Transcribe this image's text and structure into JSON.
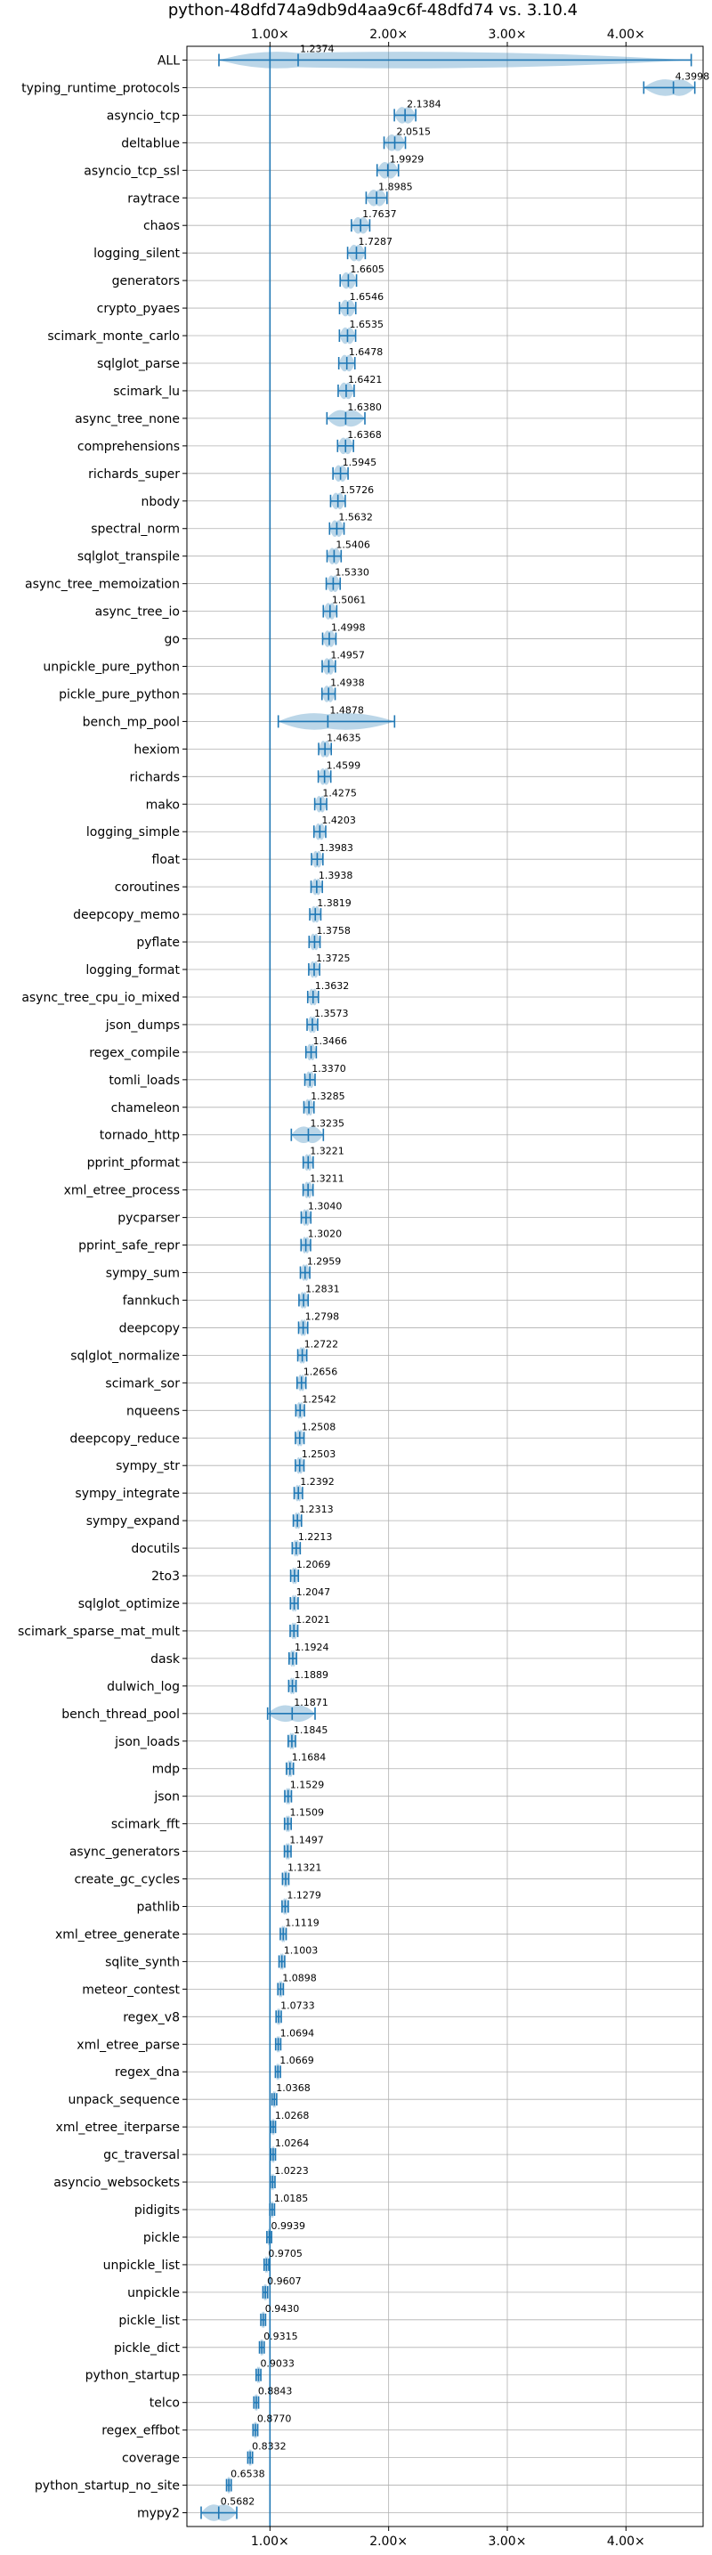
{
  "chart_data": {
    "type": "violin",
    "title": "python-48dfd74a9db9d4aa9c6f-48dfd74 vs. 3.10.4",
    "x_axis": {
      "position": "top and bottom",
      "range": [
        0.3,
        4.65
      ],
      "ticks": [
        1.0,
        2.0,
        3.0,
        4.0
      ],
      "tick_labels": [
        "1.00×",
        "2.00×",
        "3.00×",
        "4.00×"
      ]
    },
    "reference_line": 1.0,
    "grid": true,
    "categories": [
      "ALL",
      "typing_runtime_protocols",
      "asyncio_tcp",
      "deltablue",
      "asyncio_tcp_ssl",
      "raytrace",
      "chaos",
      "logging_silent",
      "generators",
      "crypto_pyaes",
      "scimark_monte_carlo",
      "sqlglot_parse",
      "scimark_lu",
      "async_tree_none",
      "comprehensions",
      "richards_super",
      "nbody",
      "spectral_norm",
      "sqlglot_transpile",
      "async_tree_memoization",
      "async_tree_io",
      "go",
      "unpickle_pure_python",
      "pickle_pure_python",
      "bench_mp_pool",
      "hexiom",
      "richards",
      "mako",
      "logging_simple",
      "float",
      "coroutines",
      "deepcopy_memo",
      "pyflate",
      "logging_format",
      "async_tree_cpu_io_mixed",
      "json_dumps",
      "regex_compile",
      "tomli_loads",
      "chameleon",
      "tornado_http",
      "pprint_pformat",
      "xml_etree_process",
      "pycparser",
      "pprint_safe_repr",
      "sympy_sum",
      "fannkuch",
      "deepcopy",
      "sqlglot_normalize",
      "scimark_sor",
      "nqueens",
      "deepcopy_reduce",
      "sympy_str",
      "sympy_integrate",
      "sympy_expand",
      "docutils",
      "2to3",
      "sqlglot_optimize",
      "scimark_sparse_mat_mult",
      "dask",
      "dulwich_log",
      "bench_thread_pool",
      "json_loads",
      "mdp",
      "json",
      "scimark_fft",
      "async_generators",
      "create_gc_cycles",
      "pathlib",
      "xml_etree_generate",
      "sqlite_synth",
      "meteor_contest",
      "regex_v8",
      "xml_etree_parse",
      "regex_dna",
      "unpack_sequence",
      "xml_etree_iterparse",
      "gc_traversal",
      "asyncio_websockets",
      "pidigits",
      "pickle",
      "unpickle_list",
      "unpickle",
      "pickle_list",
      "pickle_dict",
      "python_startup",
      "telco",
      "regex_effbot",
      "coverage",
      "python_startup_no_site",
      "mypy2"
    ],
    "values": [
      1.2374,
      4.3998,
      2.1384,
      2.0515,
      1.9929,
      1.8985,
      1.7637,
      1.7287,
      1.6605,
      1.6546,
      1.6535,
      1.6478,
      1.6421,
      1.638,
      1.6368,
      1.5945,
      1.5726,
      1.5632,
      1.5406,
      1.533,
      1.5061,
      1.4998,
      1.4957,
      1.4938,
      1.4878,
      1.4635,
      1.4599,
      1.4275,
      1.4203,
      1.3983,
      1.3938,
      1.3819,
      1.3758,
      1.3725,
      1.3632,
      1.3573,
      1.3466,
      1.337,
      1.3285,
      1.3235,
      1.3221,
      1.3211,
      1.304,
      1.302,
      1.2959,
      1.2831,
      1.2798,
      1.2722,
      1.2656,
      1.2542,
      1.2508,
      1.2503,
      1.2392,
      1.2313,
      1.2213,
      1.2069,
      1.2047,
      1.2021,
      1.1924,
      1.1889,
      1.1871,
      1.1845,
      1.1684,
      1.1529,
      1.1509,
      1.1497,
      1.1321,
      1.1279,
      1.1119,
      1.1003,
      1.0898,
      1.0733,
      1.0694,
      1.0669,
      1.0368,
      1.0268,
      1.0264,
      1.0223,
      1.0185,
      0.9939,
      0.9705,
      0.9607,
      0.943,
      0.9315,
      0.9033,
      0.8843,
      0.877,
      0.8332,
      0.6538,
      0.5682
    ],
    "value_labels": [
      "1.2374",
      "4.3998",
      "2.1384",
      "2.0515",
      "1.9929",
      "1.8985",
      "1.7637",
      "1.7287",
      "1.6605",
      "1.6546",
      "1.6535",
      "1.6478",
      "1.6421",
      "1.6380",
      "1.6368",
      "1.5945",
      "1.5726",
      "1.5632",
      "1.5406",
      "1.5330",
      "1.5061",
      "1.4998",
      "1.4957",
      "1.4938",
      "1.4878",
      "1.4635",
      "1.4599",
      "1.4275",
      "1.4203",
      "1.3983",
      "1.3938",
      "1.3819",
      "1.3758",
      "1.3725",
      "1.3632",
      "1.3573",
      "1.3466",
      "1.3370",
      "1.3285",
      "1.3235",
      "1.3221",
      "1.3211",
      "1.3040",
      "1.3020",
      "1.2959",
      "1.2831",
      "1.2798",
      "1.2722",
      "1.2656",
      "1.2542",
      "1.2508",
      "1.2503",
      "1.2392",
      "1.2313",
      "1.2213",
      "1.2069",
      "1.2047",
      "1.2021",
      "1.1924",
      "1.1889",
      "1.1871",
      "1.1845",
      "1.1684",
      "1.1529",
      "1.1509",
      "1.1497",
      "1.1321",
      "1.1279",
      "1.1119",
      "1.1003",
      "1.0898",
      "1.0733",
      "1.0694",
      "1.0669",
      "1.0368",
      "1.0268",
      "1.0264",
      "1.0223",
      "1.0185",
      "0.9939",
      "0.9705",
      "0.9607",
      "0.9430",
      "0.9315",
      "0.9033",
      "0.8843",
      "0.8770",
      "0.8332",
      "0.6538",
      "0.5682"
    ],
    "ranges": {
      "ALL": [
        0.57,
        4.55
      ],
      "typing_runtime_protocols": [
        4.15,
        4.58
      ],
      "bench_mp_pool": [
        1.07,
        2.05
      ],
      "tornado_http": [
        1.18,
        1.45
      ],
      "bench_thread_pool": [
        0.98,
        1.38
      ],
      "async_tree_none": [
        1.48,
        1.8
      ],
      "mypy2": [
        0.42,
        0.72
      ]
    },
    "color": "#1f77b4"
  }
}
